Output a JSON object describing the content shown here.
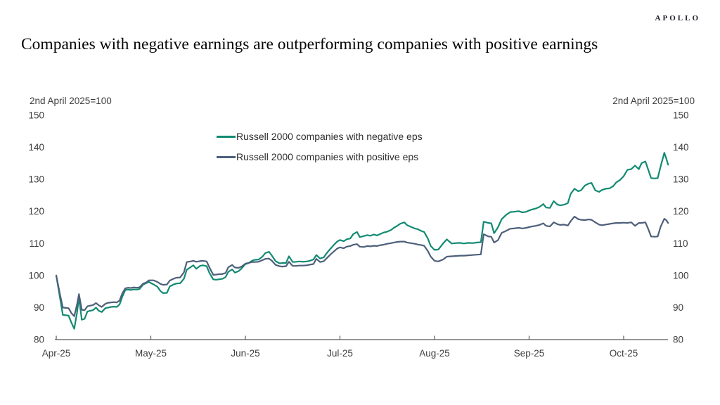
{
  "brand": {
    "logo_text": "APOLLO"
  },
  "title": "Companies with negative earnings are outperforming companies with positive earnings",
  "chart_data": {
    "type": "line",
    "title": "Companies with negative earnings are outperforming companies with positive earnings",
    "left_axis_note": "2nd April 2025=100",
    "right_axis_note": "2nd April 2025=100",
    "ylim": [
      80,
      150
    ],
    "y_ticks": [
      80,
      90,
      100,
      110,
      120,
      130,
      140,
      150
    ],
    "x_tick_labels": [
      "Apr-25",
      "May-25",
      "Jun-25",
      "Jul-25",
      "Aug-25",
      "Sep-25",
      "Oct-25"
    ],
    "xlim_months": [
      0,
      6.5
    ],
    "grid": false,
    "legend_position": "inside-top-left",
    "x_unit": "months since 2 Apr 2025 (0=Apr-25 tick, 1=May-25, ...)",
    "x": [
      0.0,
      0.04,
      0.07,
      0.1,
      0.13,
      0.16,
      0.19,
      0.22,
      0.24,
      0.27,
      0.3,
      0.33,
      0.36,
      0.39,
      0.42,
      0.45,
      0.48,
      0.52,
      0.55,
      0.58,
      0.61,
      0.64,
      0.67,
      0.7,
      0.73,
      0.76,
      0.79,
      0.82,
      0.85,
      0.88,
      0.92,
      0.95,
      0.98,
      1.03,
      1.07,
      1.1,
      1.13,
      1.17,
      1.2,
      1.24,
      1.27,
      1.31,
      1.35,
      1.38,
      1.42,
      1.45,
      1.48,
      1.52,
      1.55,
      1.59,
      1.62,
      1.66,
      1.69,
      1.72,
      1.76,
      1.79,
      1.82,
      1.86,
      1.89,
      1.93,
      1.96,
      2.0,
      2.03,
      2.07,
      2.1,
      2.14,
      2.18,
      2.21,
      2.25,
      2.28,
      2.32,
      2.36,
      2.39,
      2.43,
      2.46,
      2.5,
      2.54,
      2.57,
      2.61,
      2.65,
      2.68,
      2.72,
      2.75,
      2.79,
      2.83,
      2.86,
      2.9,
      2.94,
      2.97,
      3.0,
      3.04,
      3.07,
      3.11,
      3.14,
      3.18,
      3.21,
      3.25,
      3.29,
      3.32,
      3.36,
      3.39,
      3.43,
      3.46,
      3.5,
      3.54,
      3.57,
      3.61,
      3.64,
      3.68,
      3.71,
      3.75,
      3.79,
      3.82,
      3.86,
      3.89,
      3.93,
      3.96,
      4.0,
      4.04,
      4.09,
      4.13,
      4.18,
      4.22,
      4.27,
      4.31,
      4.36,
      4.4,
      4.45,
      4.49,
      4.52,
      4.57,
      4.6,
      4.63,
      4.67,
      4.71,
      4.76,
      4.8,
      4.84,
      4.89,
      4.93,
      4.97,
      5.0,
      5.03,
      5.07,
      5.11,
      5.15,
      5.18,
      5.22,
      5.26,
      5.3,
      5.33,
      5.37,
      5.41,
      5.44,
      5.48,
      5.52,
      5.55,
      5.59,
      5.63,
      5.66,
      5.7,
      5.74,
      5.77,
      5.81,
      5.85,
      5.89,
      5.92,
      5.96,
      6.0,
      6.04,
      6.08,
      6.12,
      6.16,
      6.19,
      6.23,
      6.26,
      6.29,
      6.33,
      6.36,
      6.39,
      6.43,
      6.45,
      6.47
    ],
    "series": [
      {
        "name": "Russell 2000 companies with negative eps",
        "color": "#128a72",
        "values": [
          100.0,
          93.0,
          87.7,
          87.6,
          87.5,
          85.3,
          83.4,
          88.5,
          93.2,
          86.2,
          86.5,
          88.8,
          89.0,
          89.2,
          90.0,
          89.0,
          88.6,
          89.8,
          90.0,
          90.2,
          90.3,
          90.2,
          91.0,
          93.5,
          95.5,
          95.6,
          95.5,
          95.7,
          95.6,
          95.8,
          97.2,
          97.6,
          98.0,
          97.2,
          96.5,
          95.2,
          94.5,
          94.6,
          96.6,
          97.2,
          97.5,
          97.6,
          99.0,
          101.8,
          102.6,
          103.2,
          102.1,
          103.0,
          103.2,
          102.9,
          100.8,
          98.8,
          98.7,
          98.8,
          99.0,
          99.5,
          101.2,
          101.9,
          100.9,
          101.4,
          102.2,
          103.6,
          103.8,
          104.6,
          104.9,
          105.0,
          105.9,
          107.0,
          107.4,
          106.2,
          104.5,
          103.8,
          103.9,
          103.9,
          106.0,
          104.2,
          104.3,
          104.4,
          104.3,
          104.4,
          104.6,
          105.0,
          106.4,
          105.3,
          105.7,
          107.0,
          108.4,
          109.7,
          110.6,
          111.1,
          110.7,
          111.3,
          111.6,
          112.9,
          113.6,
          112.0,
          112.3,
          112.6,
          112.4,
          112.8,
          112.5,
          113.0,
          113.4,
          113.7,
          114.2,
          114.9,
          115.6,
          116.2,
          116.6,
          115.7,
          115.2,
          114.7,
          114.5,
          113.9,
          113.6,
          111.5,
          109.2,
          108.0,
          108.1,
          110.0,
          111.3,
          110.0,
          110.1,
          110.2,
          110.0,
          110.2,
          110.1,
          110.3,
          110.4,
          116.8,
          116.4,
          116.3,
          113.2,
          115.0,
          117.6,
          119.0,
          119.8,
          119.9,
          120.1,
          119.7,
          119.9,
          120.3,
          120.6,
          120.9,
          121.4,
          122.3,
          121.2,
          121.1,
          123.2,
          122.1,
          121.9,
          122.1,
          122.6,
          125.5,
          127.1,
          126.3,
          126.6,
          128.1,
          128.7,
          128.9,
          126.6,
          126.1,
          126.7,
          127.1,
          127.2,
          127.9,
          129.0,
          129.8,
          131.0,
          133.0,
          133.2,
          134.3,
          133.2,
          135.1,
          135.6,
          133.0,
          130.4,
          130.3,
          130.4,
          134.0,
          138.3,
          136.6,
          134.6
        ]
      },
      {
        "name": "Russell 2000 companies with positive eps",
        "color": "#4d5f7a",
        "values": [
          100.0,
          94.0,
          90.0,
          89.9,
          89.8,
          88.3,
          87.3,
          91.0,
          94.2,
          89.3,
          89.2,
          90.4,
          90.6,
          90.8,
          91.4,
          90.7,
          90.2,
          91.2,
          91.5,
          91.6,
          91.7,
          91.6,
          92.2,
          94.5,
          96.0,
          96.2,
          96.1,
          96.3,
          96.2,
          96.3,
          97.5,
          97.8,
          98.5,
          98.5,
          98.0,
          97.4,
          97.1,
          97.2,
          98.4,
          99.0,
          99.3,
          99.4,
          101.0,
          104.2,
          104.4,
          104.6,
          104.3,
          104.5,
          104.6,
          104.4,
          102.5,
          100.2,
          100.3,
          100.4,
          100.5,
          100.8,
          102.6,
          103.3,
          102.5,
          102.4,
          102.8,
          103.7,
          103.9,
          104.2,
          104.2,
          104.3,
          104.8,
          105.2,
          105.3,
          104.6,
          103.3,
          102.9,
          102.8,
          102.9,
          104.3,
          103.0,
          103.0,
          103.1,
          103.1,
          103.2,
          103.4,
          103.6,
          105.2,
          104.2,
          104.5,
          105.4,
          106.6,
          107.6,
          108.4,
          108.8,
          108.5,
          109.0,
          109.2,
          109.6,
          109.8,
          109.0,
          108.9,
          109.2,
          109.1,
          109.3,
          109.2,
          109.5,
          109.6,
          109.9,
          110.1,
          110.3,
          110.5,
          110.6,
          110.6,
          110.3,
          110.1,
          109.9,
          109.7,
          109.5,
          109.3,
          107.6,
          105.9,
          104.6,
          104.4,
          105.0,
          105.9,
          106.0,
          106.1,
          106.2,
          106.2,
          106.3,
          106.4,
          106.5,
          106.6,
          112.9,
          112.2,
          112.1,
          110.3,
          111.0,
          113.3,
          114.0,
          114.6,
          114.7,
          114.9,
          114.7,
          114.9,
          115.1,
          115.3,
          115.5,
          115.8,
          116.3,
          115.5,
          115.3,
          116.6,
          116.0,
          115.8,
          115.9,
          115.6,
          117.0,
          118.4,
          117.6,
          117.4,
          117.3,
          117.5,
          117.4,
          116.6,
          115.9,
          115.7,
          115.9,
          116.1,
          116.3,
          116.4,
          116.4,
          116.5,
          116.4,
          116.6,
          115.5,
          116.4,
          116.4,
          116.6,
          114.5,
          112.2,
          112.1,
          112.2,
          115.2,
          117.7,
          117.3,
          116.4
        ]
      }
    ]
  }
}
